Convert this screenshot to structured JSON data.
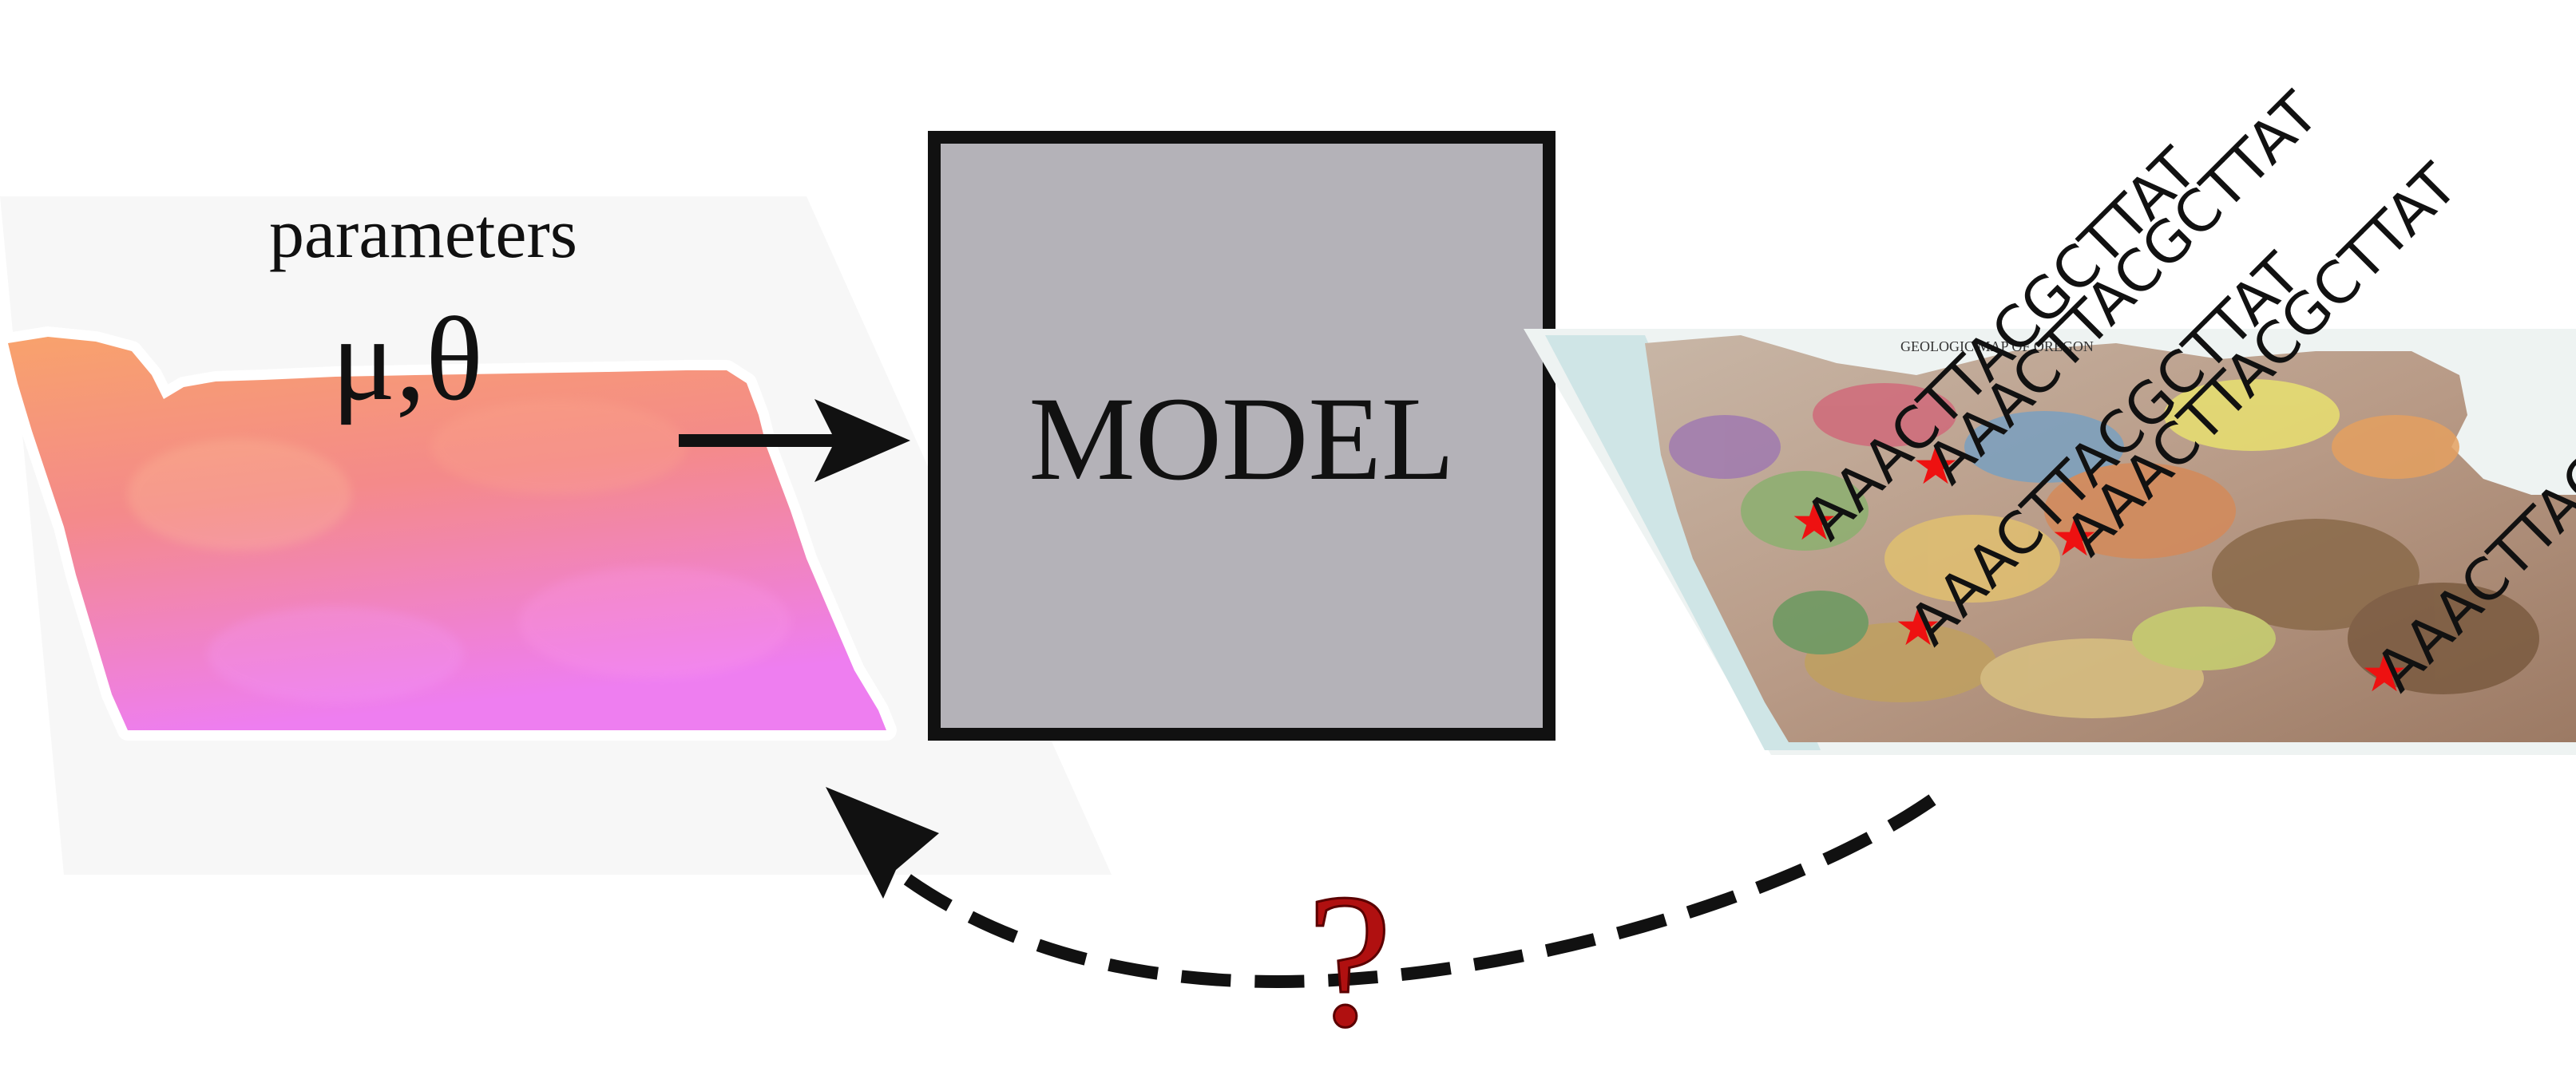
{
  "params": {
    "label": "parameters",
    "symbols": "μ,θ"
  },
  "model": {
    "label": "MODEL"
  },
  "question": "?",
  "samples": {
    "sequence": "AAACTTACGCTTAT",
    "star_glyph": "★",
    "count": 5
  },
  "map": {
    "title_fragment": "GEOLOGIC MAP OF OREGON"
  },
  "colors": {
    "stroke": "#111111",
    "model_fill": "#b4b2b8",
    "question_fill": "#b01010",
    "star": "#ee1111",
    "gradient_top": "#f7a070",
    "gradient_bottom": "#ee7cf2"
  }
}
